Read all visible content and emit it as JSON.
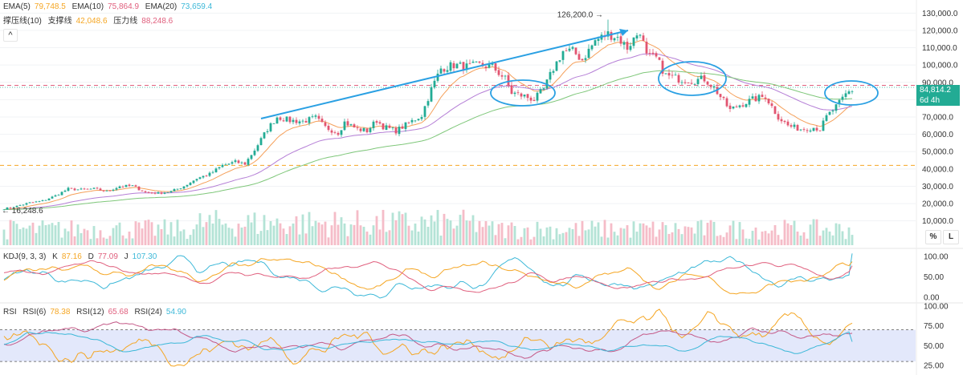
{
  "legend_ema": {
    "items": [
      {
        "label": "EMA(5)",
        "value": "79,748.5",
        "color": "#f5a623"
      },
      {
        "label": "EMA(10)",
        "value": "75,864.9",
        "color": "#e0607e"
      },
      {
        "label": "EMA(20)",
        "value": "73,659.4",
        "color": "#3cb8d8"
      }
    ]
  },
  "legend_sr": {
    "items": [
      {
        "label": "撑压线(10)",
        "value": "",
        "color": "#333333"
      },
      {
        "label": "支撑线",
        "value": "42,048.6",
        "color": "#f5a623"
      },
      {
        "label": "压力线",
        "value": "88,248.6",
        "color": "#e0607e"
      }
    ]
  },
  "legend_kdj": {
    "items": [
      {
        "label": "KDJ(9, 3, 3)",
        "value": "",
        "color": "#333333"
      },
      {
        "label": "K",
        "value": "87.16",
        "color": "#f5a623"
      },
      {
        "label": "D",
        "value": "77.09",
        "color": "#e0607e"
      },
      {
        "label": "J",
        "value": "107.30",
        "color": "#3cb8d8"
      }
    ]
  },
  "legend_rsi": {
    "items": [
      {
        "label": "RSI",
        "value": "",
        "color": "#333333"
      },
      {
        "label": "RSI(6)",
        "value": "78.38",
        "color": "#f5a623"
      },
      {
        "label": "RSI(12)",
        "value": "65.68",
        "color": "#e0607e"
      },
      {
        "label": "RSI(24)",
        "value": "54.90",
        "color": "#3cb8d8"
      }
    ]
  },
  "ui": {
    "collapse_icon": "^",
    "percent_button": "%",
    "log_button": "L",
    "current_price": "84,814.2",
    "countdown": "6d 4h"
  },
  "colors": {
    "up": "#22ab94",
    "down": "#e25570",
    "accent_blue": "#2aa0e3"
  },
  "chart_data": {
    "type": "candlestick",
    "price_axis": {
      "range": [
        8000,
        132000
      ],
      "ticks": [
        130000,
        120000,
        110000,
        100000,
        90000,
        80000,
        70000,
        60000,
        50000,
        40000,
        30000,
        20000,
        10000
      ],
      "tick_labels": [
        "130,000.0",
        "120,000.0",
        "110,000.0",
        "100,000.0",
        "90,000.0",
        "80,000.0",
        "70,000.0",
        "60,000.0",
        "50,000.0",
        "40,000.0",
        "30,000.0",
        "20,000.0",
        "10,000.0"
      ]
    },
    "support_level": 42048.6,
    "resistance_level": 88248.6,
    "current_price": 84814.2,
    "annotations": {
      "high": 126200,
      "high_label": "126,200.0",
      "low": 16248.6,
      "low_label": "16,248.6"
    },
    "price_anchors": [
      [
        0,
        17000
      ],
      [
        4,
        18500
      ],
      [
        8,
        20500
      ],
      [
        12,
        21500
      ],
      [
        16,
        24500
      ],
      [
        20,
        28500
      ],
      [
        24,
        28000
      ],
      [
        28,
        28500
      ],
      [
        32,
        27000
      ],
      [
        36,
        30000
      ],
      [
        40,
        30200
      ],
      [
        44,
        26500
      ],
      [
        48,
        26000
      ],
      [
        52,
        27000
      ],
      [
        56,
        30000
      ],
      [
        60,
        34500
      ],
      [
        64,
        37000
      ],
      [
        68,
        42000
      ],
      [
        72,
        44000
      ],
      [
        75,
        43000
      ],
      [
        78,
        51000
      ],
      [
        82,
        63000
      ],
      [
        85,
        70000
      ],
      [
        89,
        68000
      ],
      [
        93,
        67500
      ],
      [
        97,
        69500
      ],
      [
        100,
        64000
      ],
      [
        104,
        61000
      ],
      [
        106,
        67000
      ],
      [
        110,
        63000
      ],
      [
        113,
        62000
      ],
      [
        116,
        68000
      ],
      [
        118,
        64500
      ],
      [
        122,
        62000
      ],
      [
        126,
        66500
      ],
      [
        130,
        71000
      ],
      [
        133,
        86000
      ],
      [
        136,
        98000
      ],
      [
        140,
        100000
      ],
      [
        144,
        99000
      ],
      [
        148,
        100000
      ],
      [
        152,
        99000
      ],
      [
        156,
        92000
      ],
      [
        158,
        84000
      ],
      [
        162,
        82000
      ],
      [
        165,
        80000
      ],
      [
        168,
        86000
      ],
      [
        171,
        98000
      ],
      [
        174,
        108000
      ],
      [
        177,
        108000
      ],
      [
        180,
        103000
      ],
      [
        184,
        114000
      ],
      [
        188,
        118000
      ],
      [
        191,
        116000
      ],
      [
        194,
        110000
      ],
      [
        198,
        120000
      ],
      [
        200,
        105000
      ],
      [
        203,
        104000
      ],
      [
        206,
        94000
      ],
      [
        210,
        92000
      ],
      [
        214,
        91000
      ],
      [
        218,
        92000
      ],
      [
        221,
        87000
      ],
      [
        224,
        79000
      ],
      [
        226,
        74000
      ],
      [
        229,
        77000
      ],
      [
        233,
        80000
      ],
      [
        237,
        82000
      ],
      [
        239,
        76000
      ],
      [
        241,
        70000
      ],
      [
        244,
        65000
      ],
      [
        248,
        63000
      ],
      [
        252,
        64000
      ],
      [
        254,
        63000
      ],
      [
        256,
        70000
      ],
      [
        258,
        74000
      ],
      [
        260,
        78000
      ],
      [
        262,
        83000
      ],
      [
        264,
        86000
      ]
    ],
    "kdj_axis": {
      "ticks": [
        100,
        50,
        0
      ],
      "tick_labels": [
        "100.00",
        "50.00",
        "0.00"
      ]
    },
    "kdj_last": {
      "K": 87.16,
      "D": 77.09,
      "J": 107.3
    },
    "rsi_axis": {
      "ticks": [
        100,
        75,
        50,
        25
      ],
      "tick_labels": [
        "100.00",
        "75.00",
        "50.00",
        "25.00"
      ],
      "band": [
        30,
        70
      ]
    },
    "rsi_last": {
      "RSI6": 78.38,
      "RSI12": 65.68,
      "RSI24": 54.9
    }
  }
}
